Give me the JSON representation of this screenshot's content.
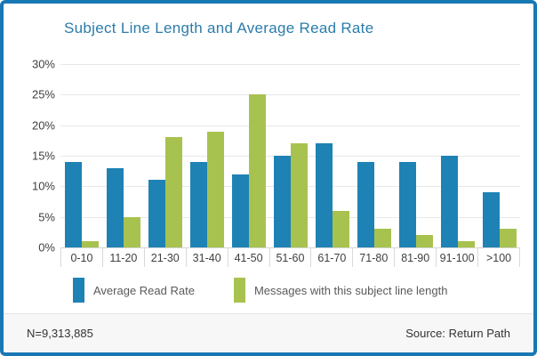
{
  "title": "Subject Line Length and Average Read Rate",
  "chart_data": {
    "type": "bar",
    "categories": [
      "0-10",
      "11-20",
      "21-30",
      "31-40",
      "41-50",
      "51-60",
      "61-70",
      "71-80",
      "81-90",
      "91-100",
      ">100"
    ],
    "series": [
      {
        "name": "Average Read Rate",
        "color": "#1e82b4",
        "values": [
          14,
          13,
          11,
          14,
          12,
          15,
          17,
          14,
          14,
          15,
          9
        ]
      },
      {
        "name": "Messages with this subject line length",
        "color": "#a8c24f",
        "values": [
          1,
          5,
          18,
          19,
          25,
          17,
          6,
          3,
          2,
          1,
          3
        ]
      }
    ],
    "xlabel": "",
    "ylabel": "",
    "ylim": [
      0,
      30
    ],
    "ytick_step": 5,
    "ytick_suffix": "%",
    "grid": true,
    "legend_position": "bottom"
  },
  "footer": {
    "sample_size": "N=9,313,885",
    "source": "Source: Return Path"
  },
  "colors": {
    "frame_blue": "#1878b4",
    "title_blue": "#2b7cab",
    "grid": "#e8e8e8",
    "axis_line": "#d5d5d5",
    "tick_sep": "#d9d9d9",
    "tick_text": "#3f3f3f",
    "legend_text": "#5a5a5a",
    "footer_bg": "#f7f7f7",
    "footer_border": "#e4e4e4",
    "footer_text": "#333333"
  }
}
